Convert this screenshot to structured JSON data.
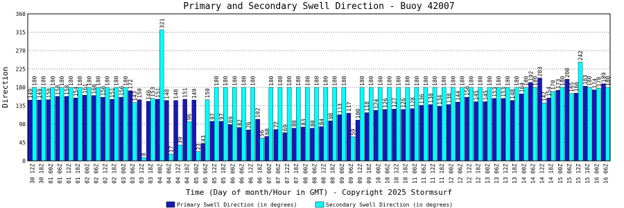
{
  "chart_data": {
    "type": "bar",
    "title": "Primary and Secondary Swell Direction - Buoy 42007",
    "y_label": "Direction",
    "x_label": "Time (Day of month/Hour in GMT) - Copyright 2025 Stormsurf",
    "categories": [
      "30 12Z",
      "30 18Z",
      "01 00Z",
      "01 06Z",
      "01 12Z",
      "01 18Z",
      "02 00Z",
      "02 06Z",
      "02 12Z",
      "02 18Z",
      "03 00Z",
      "03 06Z",
      "03 12Z",
      "03 18Z",
      "04 00Z",
      "04 06Z",
      "04 12Z",
      "04 18Z",
      "05 00Z",
      "05 06Z",
      "05 12Z",
      "05 18Z",
      "06 00Z",
      "06 06Z",
      "06 12Z",
      "06 18Z",
      "07 00Z",
      "07 06Z",
      "07 12Z",
      "07 18Z",
      "08 00Z",
      "08 06Z",
      "08 12Z",
      "08 18Z",
      "09 00Z",
      "09 06Z",
      "09 12Z",
      "09 18Z",
      "10 00Z",
      "10 06Z",
      "10 12Z",
      "10 18Z",
      "11 00Z",
      "11 06Z",
      "11 12Z",
      "11 18Z",
      "12 00Z",
      "12 06Z",
      "12 12Z",
      "12 18Z",
      "13 00Z",
      "13 06Z",
      "13 12Z",
      "13 18Z",
      "14 00Z",
      "14 06Z",
      "14 12Z",
      "14 18Z",
      "15 00Z",
      "15 06Z",
      "15 12Z",
      "15 18Z",
      "16 00Z",
      "16 06Z"
    ],
    "series": [
      {
        "name": "Primary Swell Direction (in degrees)",
        "color": "#1818b8",
        "values": [
          149,
          149,
          150,
          158,
          158,
          154,
          161,
          160,
          156,
          151,
          156,
          172,
          150,
          146,
          151,
          148,
          148,
          151,
          149,
          43,
          97,
          97,
          89,
          82,
          76,
          102,
          60,
          77,
          69,
          80,
          83,
          80,
          84,
          98,
          113,
          117,
          100,
          118,
          124,
          126,
          127,
          126,
          128,
          136,
          138,
          134,
          138,
          144,
          156,
          145,
          145,
          153,
          153,
          148,
          164,
          192,
          203,
          154,
          173,
          200,
          166,
          183,
          174,
          189
        ]
      },
      {
        "name": "Secondary Swell Direction (in degrees)",
        "color": "#00ffff",
        "values": [
          180,
          180,
          180,
          180,
          180,
          180,
          180,
          180,
          180,
          180,
          180,
          143,
          8,
          153,
          321,
          17,
          39,
          96,
          23,
          150,
          180,
          180,
          180,
          180,
          180,
          56,
          180,
          180,
          180,
          180,
          180,
          180,
          180,
          180,
          180,
          59,
          180,
          180,
          180,
          180,
          180,
          180,
          180,
          180,
          180,
          180,
          180,
          180,
          180,
          180,
          180,
          180,
          180,
          180,
          180,
          180,
          142,
          170,
          180,
          165,
          242,
          180,
          178,
          180
        ]
      }
    ],
    "ylim": [
      0,
      360
    ],
    "yticks": [
      0,
      45,
      90,
      135,
      180,
      225,
      270,
      315,
      360
    ],
    "grid": true
  }
}
